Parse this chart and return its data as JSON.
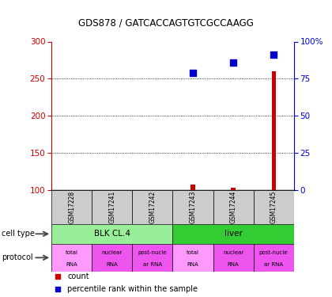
{
  "title": "GDS878 / GATCACCAGTGTCGCCAAGG",
  "samples": [
    "GSM17228",
    "GSM17241",
    "GSM17242",
    "GSM17243",
    "GSM17244",
    "GSM17245"
  ],
  "red_counts": [
    null,
    null,
    null,
    107,
    103,
    260
  ],
  "blue_percentiles": [
    null,
    null,
    null,
    258,
    272,
    282
  ],
  "ylim_left": [
    100,
    300
  ],
  "ylim_right": [
    0,
    100
  ],
  "yticks_left": [
    100,
    150,
    200,
    250,
    300
  ],
  "yticks_right": [
    0,
    25,
    50,
    75,
    100
  ],
  "ytick_labels_right": [
    "0",
    "25",
    "50",
    "75",
    "100%"
  ],
  "cell_type_groups": [
    {
      "label": "BLK CL.4",
      "start": 0,
      "end": 3,
      "color": "#99EE99"
    },
    {
      "label": "liver",
      "start": 3,
      "end": 6,
      "color": "#33CC33"
    }
  ],
  "protocols": [
    "total\nRNA",
    "nuclear\nRNA",
    "post-nucle\nar RNA",
    "total\nRNA",
    "nuclear\nRNA",
    "post-nucle\nar RNA"
  ],
  "protocol_colors": [
    "#FF99FF",
    "#EE55EE",
    "#EE55EE",
    "#FF99FF",
    "#EE55EE",
    "#EE55EE"
  ],
  "left_axis_color": "#CC0000",
  "right_axis_color": "#0000CC",
  "bar_color": "#CC0000",
  "scatter_color": "#0000CC",
  "sample_bg": "#CCCCCC",
  "dotted_lines": [
    150,
    200,
    250
  ],
  "grid_linestyle": "dotted"
}
